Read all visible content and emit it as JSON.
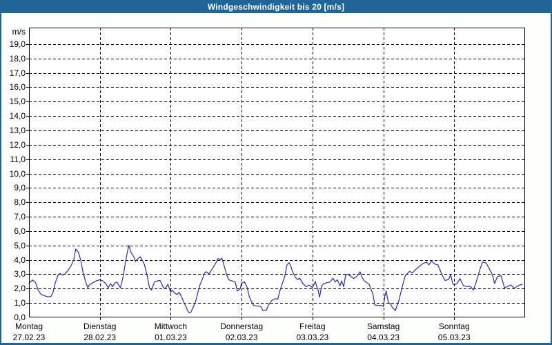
{
  "window": {
    "title": "Windgeschwindigkeit bis 20 [m/s]"
  },
  "colors": {
    "titlebar_bg": "#1f6598",
    "title_text": "#ffffff",
    "page_bg": "#fdfffd",
    "frame_border": "#1f6598",
    "plot_bg": "#ffffff",
    "axis": "#000000",
    "grid": "#000000",
    "label_text": "#000000",
    "line": "#2828b4"
  },
  "chart_data": {
    "type": "line",
    "title": "Windgeschwindigkeit bis 20 [m/s]",
    "ylabel": "m/s",
    "ylim": [
      0,
      20
    ],
    "ytick_step": 1.0,
    "decimal_style": "comma",
    "grid": "dashed",
    "legend_position": "none",
    "ytick_labels": [
      "0,0",
      "1,0",
      "2,0",
      "3,0",
      "4,0",
      "5,0",
      "6,0",
      "7,0",
      "8,0",
      "9,0",
      "10,0",
      "11,0",
      "12,0",
      "13,0",
      "14,0",
      "15,0",
      "16,0",
      "17,0",
      "18,0",
      "19,0"
    ],
    "x_axis": {
      "unit": "days",
      "days": [
        {
          "name": "Montag",
          "date": "27.02.23"
        },
        {
          "name": "Dienstag",
          "date": "28.02.23"
        },
        {
          "name": "Mittwoch",
          "date": "01.03.23"
        },
        {
          "name": "Donnerstag",
          "date": "02.03.23"
        },
        {
          "name": "Freitag",
          "date": "03.03.23"
        },
        {
          "name": "Samstag",
          "date": "04.03.23"
        },
        {
          "name": "Sonntag",
          "date": "05.03.23"
        }
      ]
    },
    "series": [
      {
        "name": "Windgeschwindigkeit",
        "unit": "m/s",
        "color": "#2828b4",
        "points": [
          [
            0.0,
            2.35
          ],
          [
            0.05,
            2.6
          ],
          [
            0.09,
            2.45
          ],
          [
            0.13,
            1.9
          ],
          [
            0.17,
            1.6
          ],
          [
            0.22,
            1.5
          ],
          [
            0.27,
            1.43
          ],
          [
            0.31,
            1.46
          ],
          [
            0.34,
            1.75
          ],
          [
            0.37,
            2.38
          ],
          [
            0.41,
            2.94
          ],
          [
            0.44,
            3.05
          ],
          [
            0.47,
            2.94
          ],
          [
            0.5,
            3.0
          ],
          [
            0.55,
            3.25
          ],
          [
            0.6,
            3.65
          ],
          [
            0.63,
            3.97
          ],
          [
            0.66,
            4.76
          ],
          [
            0.7,
            4.5
          ],
          [
            0.73,
            3.97
          ],
          [
            0.76,
            3.17
          ],
          [
            0.8,
            2.46
          ],
          [
            0.83,
            2.06
          ],
          [
            0.85,
            2.25
          ],
          [
            0.89,
            2.38
          ],
          [
            0.92,
            2.46
          ],
          [
            0.95,
            2.54
          ],
          [
            1.0,
            2.62
          ],
          [
            1.04,
            2.54
          ],
          [
            1.09,
            2.3
          ],
          [
            1.12,
            2.06
          ],
          [
            1.15,
            2.35
          ],
          [
            1.18,
            2.14
          ],
          [
            1.21,
            2.38
          ],
          [
            1.24,
            2.46
          ],
          [
            1.29,
            2.06
          ],
          [
            1.33,
            2.86
          ],
          [
            1.36,
            3.81
          ],
          [
            1.39,
            4.6
          ],
          [
            1.41,
            5.0
          ],
          [
            1.44,
            4.52
          ],
          [
            1.48,
            4.21
          ],
          [
            1.5,
            3.89
          ],
          [
            1.53,
            4.05
          ],
          [
            1.57,
            4.21
          ],
          [
            1.6,
            3.97
          ],
          [
            1.63,
            3.65
          ],
          [
            1.67,
            2.86
          ],
          [
            1.7,
            2.06
          ],
          [
            1.73,
            1.9
          ],
          [
            1.77,
            2.46
          ],
          [
            1.82,
            2.54
          ],
          [
            1.85,
            2.57
          ],
          [
            1.89,
            2.14
          ],
          [
            1.92,
            1.98
          ],
          [
            1.96,
            2.3
          ],
          [
            2.0,
            1.75
          ],
          [
            2.02,
            1.9
          ],
          [
            2.06,
            1.67
          ],
          [
            2.09,
            1.59
          ],
          [
            2.12,
            1.75
          ],
          [
            2.16,
            1.35
          ],
          [
            2.18,
            1.11
          ],
          [
            2.21,
            0.79
          ],
          [
            2.25,
            0.35
          ],
          [
            2.28,
            0.32
          ],
          [
            2.31,
            0.63
          ],
          [
            2.35,
            1.11
          ],
          [
            2.38,
            1.67
          ],
          [
            2.41,
            2.22
          ],
          [
            2.45,
            2.7
          ],
          [
            2.48,
            3.1
          ],
          [
            2.5,
            3.17
          ],
          [
            2.54,
            3.02
          ],
          [
            2.57,
            3.25
          ],
          [
            2.6,
            3.49
          ],
          [
            2.64,
            3.81
          ],
          [
            2.67,
            4.1
          ],
          [
            2.7,
            4.0
          ],
          [
            2.72,
            4.13
          ],
          [
            2.75,
            3.65
          ],
          [
            2.79,
            2.94
          ],
          [
            2.82,
            2.62
          ],
          [
            2.86,
            2.54
          ],
          [
            2.91,
            2.46
          ],
          [
            2.94,
            1.83
          ],
          [
            2.98,
            1.98
          ],
          [
            3.0,
            2.38
          ],
          [
            3.04,
            2.46
          ],
          [
            3.08,
            2.06
          ],
          [
            3.11,
            1.43
          ],
          [
            3.14,
            1.11
          ],
          [
            3.17,
            0.83
          ],
          [
            3.22,
            0.79
          ],
          [
            3.27,
            0.76
          ],
          [
            3.3,
            0.48
          ],
          [
            3.35,
            0.51
          ],
          [
            3.38,
            0.87
          ],
          [
            3.43,
            1.19
          ],
          [
            3.48,
            1.3
          ],
          [
            3.51,
            1.27
          ],
          [
            3.54,
            1.83
          ],
          [
            3.57,
            2.3
          ],
          [
            3.61,
            2.86
          ],
          [
            3.64,
            3.65
          ],
          [
            3.67,
            3.81
          ],
          [
            3.7,
            3.5
          ],
          [
            3.72,
            3.17
          ],
          [
            3.76,
            2.78
          ],
          [
            3.79,
            2.62
          ],
          [
            3.82,
            2.73
          ],
          [
            3.86,
            2.38
          ],
          [
            3.91,
            2.14
          ],
          [
            3.95,
            2.25
          ],
          [
            4.0,
            2.06
          ],
          [
            4.04,
            2.51
          ],
          [
            4.06,
            2.14
          ],
          [
            4.08,
            1.9
          ],
          [
            4.1,
            1.4
          ],
          [
            4.13,
            2.19
          ],
          [
            4.16,
            2.35
          ],
          [
            4.2,
            2.41
          ],
          [
            4.25,
            2.46
          ],
          [
            4.29,
            2.73
          ],
          [
            4.32,
            2.46
          ],
          [
            4.35,
            2.62
          ],
          [
            4.39,
            2.19
          ],
          [
            4.41,
            2.54
          ],
          [
            4.44,
            2.14
          ],
          [
            4.47,
            2.98
          ],
          [
            4.51,
            2.98
          ],
          [
            4.54,
            2.86
          ],
          [
            4.58,
            2.7
          ],
          [
            4.61,
            2.78
          ],
          [
            4.64,
            2.94
          ],
          [
            4.67,
            3.17
          ],
          [
            4.7,
            2.78
          ],
          [
            4.73,
            2.54
          ],
          [
            4.77,
            2.41
          ],
          [
            4.8,
            2.3
          ],
          [
            4.83,
            1.9
          ],
          [
            4.85,
            1.67
          ],
          [
            4.88,
            0.87
          ],
          [
            4.92,
            0.83
          ],
          [
            4.97,
            0.83
          ],
          [
            5.0,
            0.76
          ],
          [
            5.02,
            1.43
          ],
          [
            5.04,
            1.83
          ],
          [
            5.07,
            1.03
          ],
          [
            5.1,
            0.95
          ],
          [
            5.13,
            0.67
          ],
          [
            5.17,
            0.48
          ],
          [
            5.22,
            1.2
          ],
          [
            5.27,
            2.2
          ],
          [
            5.31,
            2.9
          ],
          [
            5.37,
            3.2
          ],
          [
            5.41,
            3.1
          ],
          [
            5.45,
            3.3
          ],
          [
            5.52,
            3.6
          ],
          [
            5.56,
            3.75
          ],
          [
            5.61,
            3.84
          ],
          [
            5.64,
            3.65
          ],
          [
            5.68,
            3.9
          ],
          [
            5.73,
            3.7
          ],
          [
            5.77,
            3.65
          ],
          [
            5.82,
            3.05
          ],
          [
            5.87,
            2.56
          ],
          [
            5.92,
            2.64
          ],
          [
            5.95,
            2.96
          ],
          [
            5.98,
            2.35
          ],
          [
            6.0,
            2.25
          ],
          [
            6.04,
            2.35
          ],
          [
            6.08,
            2.7
          ],
          [
            6.13,
            2.2
          ],
          [
            6.18,
            2.15
          ],
          [
            6.23,
            2.15
          ],
          [
            6.27,
            1.9
          ],
          [
            6.31,
            2.45
          ],
          [
            6.36,
            3.3
          ],
          [
            6.4,
            3.85
          ],
          [
            6.45,
            3.78
          ],
          [
            6.5,
            3.35
          ],
          [
            6.54,
            2.95
          ],
          [
            6.57,
            2.35
          ],
          [
            6.61,
            2.85
          ],
          [
            6.66,
            2.9
          ],
          [
            6.71,
            2.05
          ],
          [
            6.75,
            2.15
          ],
          [
            6.8,
            2.25
          ],
          [
            6.85,
            2.03
          ],
          [
            6.9,
            2.2
          ],
          [
            6.96,
            2.3
          ]
        ]
      }
    ]
  }
}
